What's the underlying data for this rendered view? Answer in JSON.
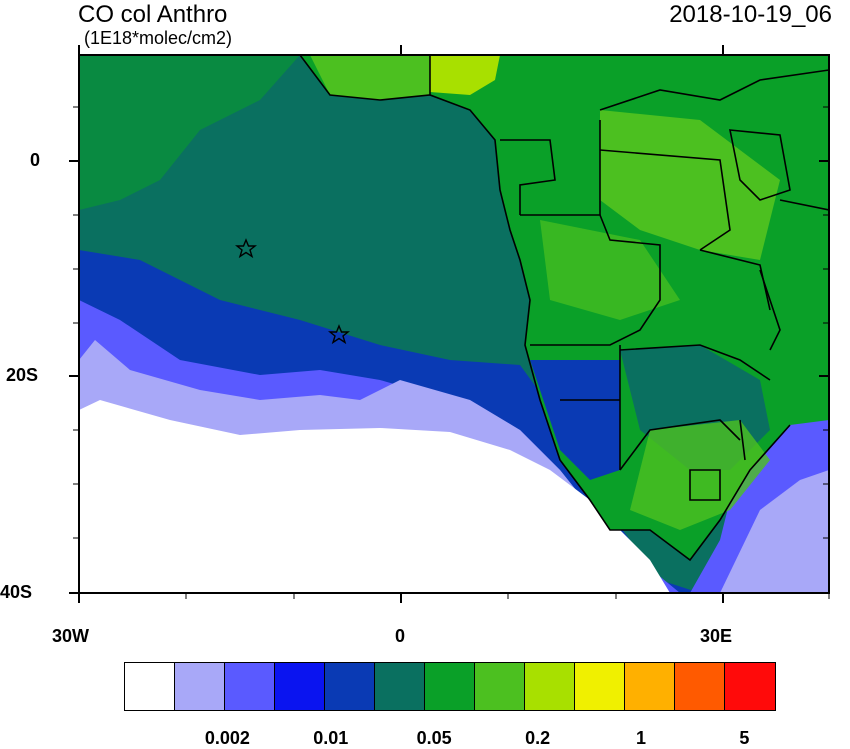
{
  "title": "CO col Anthro",
  "units": "(1E18*molec/cm2)",
  "valid_time": "2018-10-19_06",
  "axes": {
    "lat_ticks": [
      "0",
      "20S",
      "40S"
    ],
    "lon_ticks": [
      "30W",
      "0",
      "30E"
    ]
  },
  "colorbar": {
    "colors": [
      "#ffffff",
      "#a8a8f8",
      "#5a5aff",
      "#0a14f0",
      "#0a3ab4",
      "#0a7060",
      "#0aa028",
      "#4cc020",
      "#a8e000",
      "#f0f000",
      "#ffb000",
      "#ff5a00",
      "#ff0a0a"
    ],
    "labels": [
      "0.002",
      "0.01",
      "0.05",
      "0.2",
      "1",
      "5"
    ]
  },
  "map_colors": {
    "ocean_far": "#0a7060",
    "coast_land": "#0aa028",
    "land_bright": "#4cc020",
    "nigeria": "#a8e000",
    "blue_dark": "#0a3ab4",
    "blue": "#5a5aff",
    "blue_light": "#a8a8f8",
    "white": "#ffffff"
  },
  "markers": [
    "star-1",
    "star-2"
  ]
}
